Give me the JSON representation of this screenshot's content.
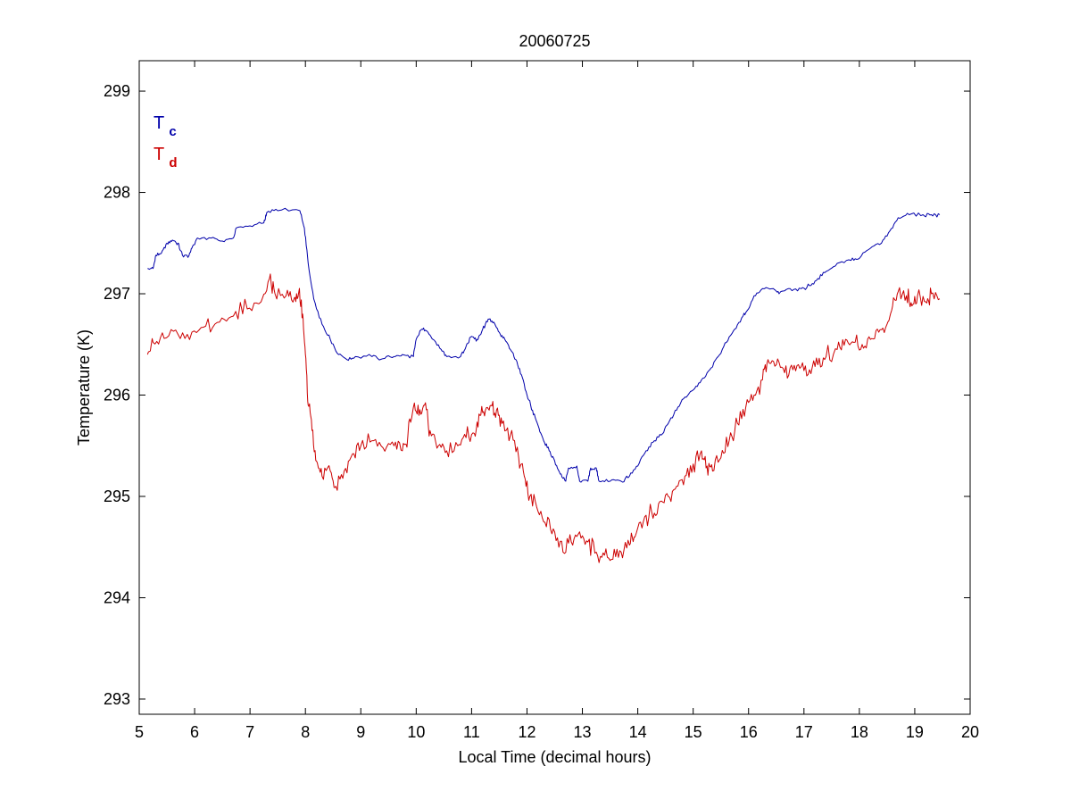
{
  "chart_data": {
    "type": "line",
    "title": "20060725",
    "xlabel": "Local Time (decimal hours)",
    "ylabel": "Temperature (K)",
    "xlim": [
      5,
      20
    ],
    "ylim": [
      292.85,
      299.3
    ],
    "xticks": [
      5,
      6,
      7,
      8,
      9,
      10,
      11,
      12,
      13,
      14,
      15,
      16,
      17,
      18,
      19,
      20
    ],
    "yticks": [
      293,
      294,
      295,
      296,
      297,
      298,
      299
    ],
    "grid": false,
    "legend_position": "top-left",
    "legend": [
      {
        "main": "T",
        "sub": "c",
        "color": "#0000aa"
      },
      {
        "main": "T",
        "sub": "d",
        "color": "#cc0000"
      }
    ],
    "series": [
      {
        "name": "Tc",
        "color": "#0000aa",
        "points": [
          [
            5.15,
            297.25
          ],
          [
            5.25,
            297.25
          ],
          [
            5.3,
            297.38
          ],
          [
            5.4,
            297.4
          ],
          [
            5.5,
            297.5
          ],
          [
            5.6,
            297.53
          ],
          [
            5.7,
            297.5
          ],
          [
            5.78,
            297.38
          ],
          [
            5.9,
            297.38
          ],
          [
            5.95,
            297.45
          ],
          [
            6.05,
            297.55
          ],
          [
            6.3,
            297.55
          ],
          [
            6.5,
            297.52
          ],
          [
            6.7,
            297.55
          ],
          [
            6.75,
            297.65
          ],
          [
            7.0,
            297.67
          ],
          [
            7.25,
            297.7
          ],
          [
            7.3,
            297.8
          ],
          [
            7.5,
            297.82
          ],
          [
            7.9,
            297.82
          ],
          [
            7.98,
            297.65
          ],
          [
            8.05,
            297.3
          ],
          [
            8.15,
            296.95
          ],
          [
            8.3,
            296.7
          ],
          [
            8.45,
            296.55
          ],
          [
            8.6,
            296.4
          ],
          [
            8.75,
            296.35
          ],
          [
            8.9,
            296.38
          ],
          [
            9.2,
            296.38
          ],
          [
            9.4,
            296.36
          ],
          [
            9.6,
            296.38
          ],
          [
            9.75,
            296.4
          ],
          [
            9.95,
            296.38
          ],
          [
            10.0,
            296.55
          ],
          [
            10.1,
            296.65
          ],
          [
            10.2,
            296.63
          ],
          [
            10.3,
            296.55
          ],
          [
            10.45,
            296.45
          ],
          [
            10.55,
            296.38
          ],
          [
            10.8,
            296.38
          ],
          [
            10.9,
            296.48
          ],
          [
            11.0,
            296.58
          ],
          [
            11.1,
            296.55
          ],
          [
            11.2,
            296.65
          ],
          [
            11.3,
            296.75
          ],
          [
            11.4,
            296.72
          ],
          [
            11.5,
            296.62
          ],
          [
            11.6,
            296.55
          ],
          [
            11.7,
            296.45
          ],
          [
            11.8,
            296.35
          ],
          [
            11.9,
            296.2
          ],
          [
            12.0,
            296.0
          ],
          [
            12.1,
            295.85
          ],
          [
            12.2,
            295.7
          ],
          [
            12.3,
            295.55
          ],
          [
            12.4,
            295.45
          ],
          [
            12.5,
            295.35
          ],
          [
            12.6,
            295.22
          ],
          [
            12.7,
            295.15
          ],
          [
            12.75,
            295.28
          ],
          [
            12.9,
            295.3
          ],
          [
            12.95,
            295.15
          ],
          [
            13.1,
            295.15
          ],
          [
            13.15,
            295.28
          ],
          [
            13.25,
            295.28
          ],
          [
            13.3,
            295.15
          ],
          [
            13.5,
            295.15
          ],
          [
            13.7,
            295.15
          ],
          [
            13.85,
            295.2
          ],
          [
            14.0,
            295.3
          ],
          [
            14.15,
            295.45
          ],
          [
            14.3,
            295.55
          ],
          [
            14.45,
            295.62
          ],
          [
            14.55,
            295.72
          ],
          [
            14.7,
            295.85
          ],
          [
            14.85,
            295.98
          ],
          [
            15.0,
            296.05
          ],
          [
            15.15,
            296.15
          ],
          [
            15.3,
            296.25
          ],
          [
            15.45,
            296.38
          ],
          [
            15.6,
            296.52
          ],
          [
            15.75,
            296.65
          ],
          [
            15.9,
            296.78
          ],
          [
            16.0,
            296.85
          ],
          [
            16.1,
            296.98
          ],
          [
            16.25,
            297.05
          ],
          [
            16.45,
            297.05
          ],
          [
            16.55,
            297.0
          ],
          [
            16.75,
            297.05
          ],
          [
            16.95,
            297.05
          ],
          [
            17.1,
            297.08
          ],
          [
            17.25,
            297.15
          ],
          [
            17.4,
            297.22
          ],
          [
            17.6,
            297.3
          ],
          [
            17.85,
            297.33
          ],
          [
            18.0,
            297.35
          ],
          [
            18.2,
            297.45
          ],
          [
            18.4,
            297.5
          ],
          [
            18.55,
            297.62
          ],
          [
            18.7,
            297.75
          ],
          [
            18.9,
            297.78
          ],
          [
            19.15,
            297.78
          ],
          [
            19.3,
            297.78
          ],
          [
            19.45,
            297.78
          ]
        ]
      },
      {
        "name": "Td",
        "color": "#cc0000",
        "points": [
          [
            5.15,
            296.4
          ],
          [
            5.25,
            296.52
          ],
          [
            5.45,
            296.56
          ],
          [
            5.7,
            296.6
          ],
          [
            5.95,
            296.62
          ],
          [
            6.2,
            296.68
          ],
          [
            6.45,
            296.72
          ],
          [
            6.7,
            296.78
          ],
          [
            6.95,
            296.85
          ],
          [
            7.2,
            296.92
          ],
          [
            7.35,
            297.15
          ],
          [
            7.45,
            297.0
          ],
          [
            7.65,
            296.98
          ],
          [
            7.8,
            296.96
          ],
          [
            7.88,
            297.02
          ],
          [
            7.95,
            296.8
          ],
          [
            8.0,
            296.4
          ],
          [
            8.05,
            295.9
          ],
          [
            8.12,
            295.65
          ],
          [
            8.2,
            295.35
          ],
          [
            8.3,
            295.2
          ],
          [
            8.45,
            295.25
          ],
          [
            8.55,
            295.1
          ],
          [
            8.7,
            295.25
          ],
          [
            8.85,
            295.42
          ],
          [
            9.0,
            295.5
          ],
          [
            9.2,
            295.55
          ],
          [
            9.4,
            295.48
          ],
          [
            9.6,
            295.5
          ],
          [
            9.75,
            295.45
          ],
          [
            9.85,
            295.6
          ],
          [
            9.95,
            295.88
          ],
          [
            10.05,
            295.8
          ],
          [
            10.15,
            295.9
          ],
          [
            10.25,
            295.65
          ],
          [
            10.4,
            295.5
          ],
          [
            10.55,
            295.45
          ],
          [
            10.75,
            295.5
          ],
          [
            10.9,
            295.58
          ],
          [
            11.05,
            295.62
          ],
          [
            11.15,
            295.8
          ],
          [
            11.25,
            295.85
          ],
          [
            11.35,
            295.9
          ],
          [
            11.45,
            295.85
          ],
          [
            11.55,
            295.72
          ],
          [
            11.7,
            295.6
          ],
          [
            11.85,
            295.38
          ],
          [
            11.95,
            295.2
          ],
          [
            12.05,
            295.0
          ],
          [
            12.2,
            294.85
          ],
          [
            12.35,
            294.7
          ],
          [
            12.5,
            294.65
          ],
          [
            12.65,
            294.45
          ],
          [
            12.8,
            294.55
          ],
          [
            12.95,
            294.65
          ],
          [
            13.1,
            294.55
          ],
          [
            13.25,
            294.45
          ],
          [
            13.4,
            294.42
          ],
          [
            13.55,
            294.38
          ],
          [
            13.7,
            294.45
          ],
          [
            13.85,
            294.52
          ],
          [
            13.95,
            294.6
          ],
          [
            14.1,
            294.75
          ],
          [
            14.25,
            294.85
          ],
          [
            14.4,
            294.95
          ],
          [
            14.55,
            295.0
          ],
          [
            14.7,
            295.1
          ],
          [
            14.85,
            295.2
          ],
          [
            15.0,
            295.32
          ],
          [
            15.15,
            295.45
          ],
          [
            15.25,
            295.3
          ],
          [
            15.35,
            295.25
          ],
          [
            15.5,
            295.38
          ],
          [
            15.65,
            295.55
          ],
          [
            15.8,
            295.72
          ],
          [
            15.95,
            295.88
          ],
          [
            16.1,
            296.0
          ],
          [
            16.25,
            296.15
          ],
          [
            16.35,
            296.35
          ],
          [
            16.5,
            296.3
          ],
          [
            16.65,
            296.22
          ],
          [
            16.8,
            296.25
          ],
          [
            16.95,
            296.28
          ],
          [
            17.1,
            296.25
          ],
          [
            17.25,
            296.3
          ],
          [
            17.4,
            296.38
          ],
          [
            17.6,
            296.45
          ],
          [
            17.75,
            296.55
          ],
          [
            17.9,
            296.52
          ],
          [
            18.05,
            296.5
          ],
          [
            18.2,
            296.55
          ],
          [
            18.35,
            296.62
          ],
          [
            18.5,
            296.7
          ],
          [
            18.6,
            296.88
          ],
          [
            18.7,
            297.02
          ],
          [
            18.85,
            296.98
          ],
          [
            18.95,
            296.88
          ],
          [
            19.05,
            296.98
          ],
          [
            19.2,
            296.92
          ],
          [
            19.3,
            297.0
          ],
          [
            19.45,
            296.95
          ]
        ]
      }
    ]
  }
}
